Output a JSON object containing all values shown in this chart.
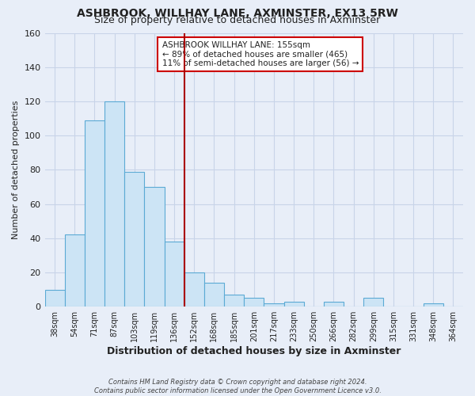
{
  "title": "ASHBROOK, WILLHAY LANE, AXMINSTER, EX13 5RW",
  "subtitle": "Size of property relative to detached houses in Axminster",
  "xlabel": "Distribution of detached houses by size in Axminster",
  "ylabel": "Number of detached properties",
  "bar_labels": [
    "38sqm",
    "54sqm",
    "71sqm",
    "87sqm",
    "103sqm",
    "119sqm",
    "136sqm",
    "152sqm",
    "168sqm",
    "185sqm",
    "201sqm",
    "217sqm",
    "233sqm",
    "250sqm",
    "266sqm",
    "282sqm",
    "299sqm",
    "315sqm",
    "331sqm",
    "348sqm",
    "364sqm"
  ],
  "bar_values": [
    10,
    42,
    109,
    120,
    79,
    70,
    38,
    20,
    14,
    7,
    5,
    2,
    3,
    0,
    3,
    0,
    5,
    0,
    0,
    2,
    0
  ],
  "bar_color": "#cce4f5",
  "bar_edge_color": "#5baad4",
  "vline_after_index": 6,
  "vline_color": "#aa0000",
  "ylim": [
    0,
    160
  ],
  "yticks": [
    0,
    20,
    40,
    60,
    80,
    100,
    120,
    140,
    160
  ],
  "annotation_line1": "ASHBROOK WILLHAY LANE: 155sqm",
  "annotation_line2": "← 89% of detached houses are smaller (465)",
  "annotation_line3": "11% of semi-detached houses are larger (56) →",
  "annotation_box_facecolor": "#ffffff",
  "annotation_box_edgecolor": "#cc0000",
  "footer_line1": "Contains HM Land Registry data © Crown copyright and database right 2024.",
  "footer_line2": "Contains public sector information licensed under the Open Government Licence v3.0.",
  "background_color": "#e8eef8",
  "grid_color": "#c8d4e8",
  "title_fontsize": 10,
  "subtitle_fontsize": 9,
  "tick_fontsize": 7,
  "ylabel_fontsize": 8,
  "xlabel_fontsize": 9
}
